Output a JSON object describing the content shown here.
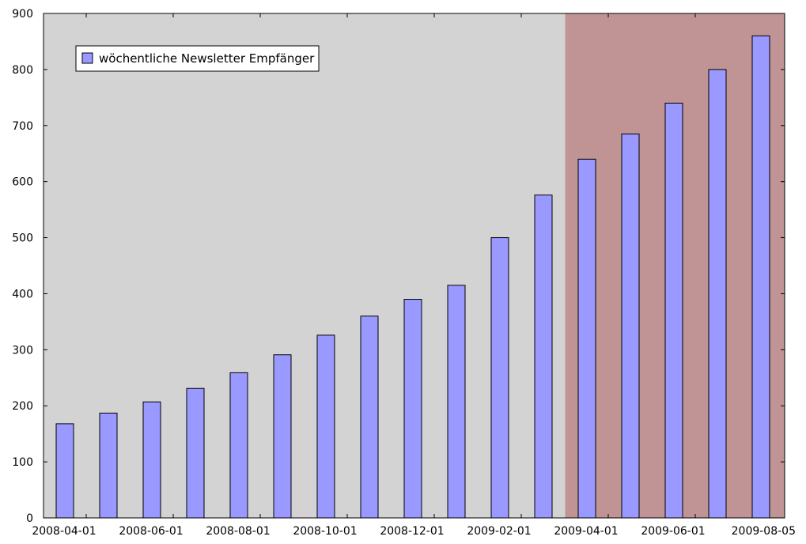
{
  "chart_data": {
    "type": "bar",
    "title": "",
    "xlabel": "",
    "ylabel": "",
    "ylim": [
      0,
      900
    ],
    "yticks": [
      0,
      100,
      200,
      300,
      400,
      500,
      600,
      700,
      800,
      900
    ],
    "xticks": [
      "2008-04-01",
      "2008-06-01",
      "2008-08-01",
      "2008-10-01",
      "2008-12-01",
      "2009-02-01",
      "2009-04-01",
      "2009-06-01",
      "2009-08-05"
    ],
    "series": [
      {
        "name": "wöchentliche Newsletter Empfänger",
        "color": "#9999ff",
        "values": [
          168,
          187,
          207,
          231,
          259,
          291,
          326,
          360,
          390,
          415,
          500,
          576,
          640,
          685,
          740,
          800,
          860
        ]
      }
    ],
    "shaded_regions": [
      {
        "from_bar_index": 0,
        "to_bar_index": 11,
        "color": "#d3d3d3"
      },
      {
        "from_bar_index": 12,
        "to_bar_index": 16,
        "color": "#c09494"
      }
    ],
    "grid": false,
    "legend_position": "top-left"
  }
}
